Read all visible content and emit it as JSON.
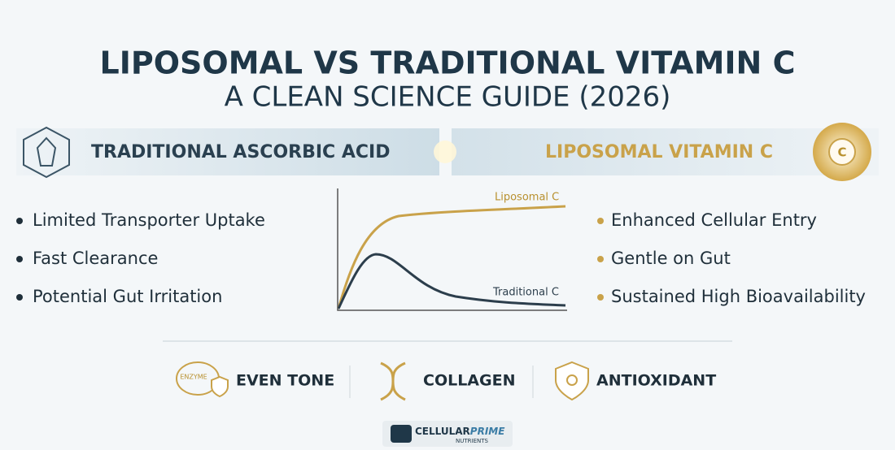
{
  "header": {
    "title": "LIPOSOMAL VS TRADITIONAL VITAMIN C",
    "subtitle": "A CLEAN SCIENCE GUIDE (2026)"
  },
  "left": {
    "heading": "TRADITIONAL ASCORBIC ACID",
    "items": [
      "Limited Transporter Uptake",
      "Fast Clearance",
      "Potential Gut Irritation"
    ]
  },
  "right": {
    "heading": "LIPOSOMAL VITAMIN C",
    "items": [
      "Enhanced Cellular Entry",
      "Gentle on Gut",
      "Sustained High Bioavailability"
    ]
  },
  "chart": {
    "labels": [
      "Liposomal C",
      "Traditional C"
    ]
  },
  "benefits": {
    "icon_text": "ENZYME",
    "items": [
      "EVEN TONE",
      "COLLAGEN",
      "ANTIOXIDANT"
    ]
  },
  "logo": {
    "name_first": "CELLULAR",
    "name_second": "PRIME",
    "tagline": "NUTRIENTS"
  }
}
